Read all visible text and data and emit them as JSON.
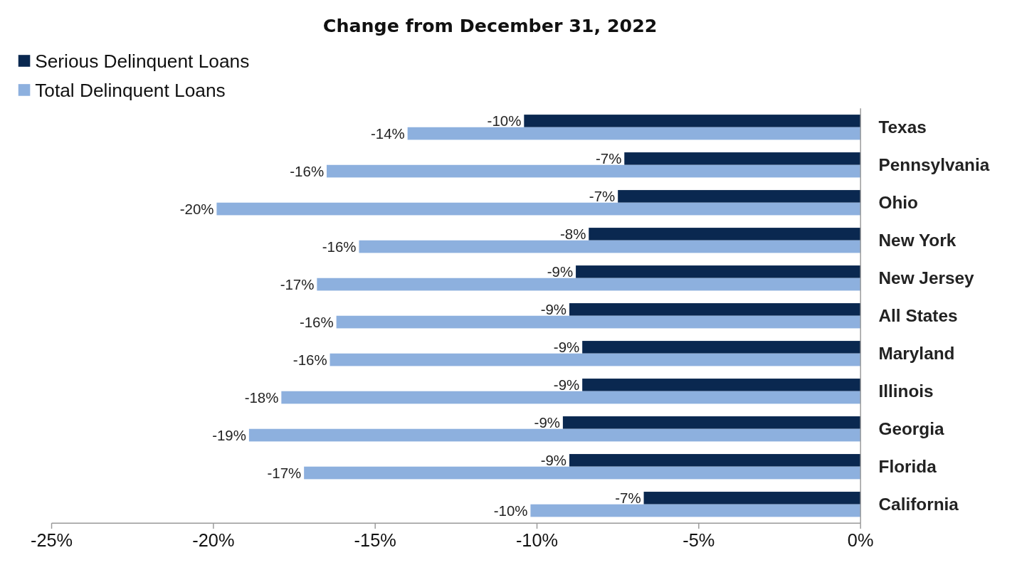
{
  "chart_data": {
    "type": "bar",
    "orientation": "horizontal",
    "title": "Change from December 31, 2022",
    "categories": [
      "Texas",
      "Pennsylvania",
      "Ohio",
      "New York",
      "New Jersey",
      "All States",
      "Maryland",
      "Illinois",
      "Georgia",
      "Florida",
      "California"
    ],
    "series": [
      {
        "name": "Serious Delinquent Loans",
        "color": "#0a2850",
        "values": [
          -10.4,
          -7.3,
          -7.5,
          -8.4,
          -8.8,
          -9.0,
          -8.6,
          -8.6,
          -9.2,
          -9.0,
          -6.7
        ],
        "value_labels": [
          "-10%",
          "-7%",
          "-7%",
          "-8%",
          "-9%",
          "-9%",
          "-9%",
          "-9%",
          "-9%",
          "-9%",
          "-7%"
        ]
      },
      {
        "name": "Total Delinquent Loans",
        "color": "#8db0de",
        "values": [
          -14.0,
          -16.5,
          -19.9,
          -15.5,
          -16.8,
          -16.2,
          -16.4,
          -17.9,
          -18.9,
          -17.2,
          -10.2
        ],
        "value_labels": [
          "-14%",
          "-16%",
          "-20%",
          "-16%",
          "-17%",
          "-16%",
          "-16%",
          "-18%",
          "-19%",
          "-17%",
          "-10%"
        ]
      }
    ],
    "xlim": [
      -25,
      0
    ],
    "xticks": [
      {
        "value": -25,
        "label": "-25%"
      },
      {
        "value": -20,
        "label": "-20%"
      },
      {
        "value": -15,
        "label": "-15%"
      },
      {
        "value": -10,
        "label": "-10%"
      },
      {
        "value": -5,
        "label": "-5%"
      },
      {
        "value": 0,
        "label": "0%"
      }
    ],
    "legend": "top left",
    "grid": false
  }
}
